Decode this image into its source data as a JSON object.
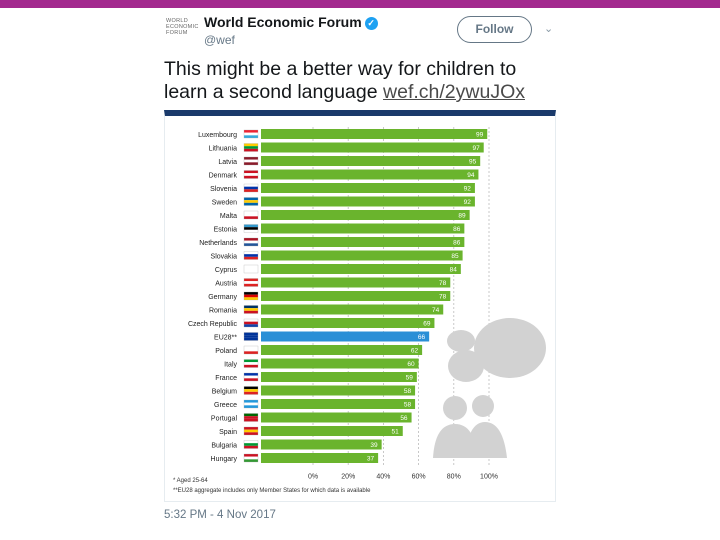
{
  "tweet": {
    "author": "World Economic Forum",
    "verified_mark": "✓",
    "handle": "@wef",
    "follow_label": "Follow",
    "menu_icon": "chevron-down-icon",
    "text": "This might be a better way for children to learn a second language ",
    "link_text": "wef.ch/2ywuJOx",
    "timestamp": "5:32 PM - 4 Nov 2017",
    "logo_lines": [
      "WORLD",
      "ECONOMIC",
      "FORUM"
    ]
  },
  "colors": {
    "top_bar": "#a3298e",
    "bar_default": "#6ab42d",
    "bar_highlight": "#2a8fd6",
    "card_border_top": "#1a3a6b",
    "follow_text": "#657786"
  },
  "chart_data": {
    "type": "bar",
    "orientation": "horizontal",
    "categories": [
      "Luxembourg",
      "Lithuania",
      "Latvia",
      "Denmark",
      "Slovenia",
      "Sweden",
      "Malta",
      "Estonia",
      "Netherlands",
      "Slovakia",
      "Cyprus",
      "Austria",
      "Germany",
      "Romania",
      "Czech Republic",
      "EU28**",
      "Poland",
      "Italy",
      "France",
      "Belgium",
      "Greece",
      "Portugal",
      "Spain",
      "Bulgaria",
      "Hungary"
    ],
    "values": [
      99,
      97,
      95,
      94,
      92,
      92,
      89,
      86,
      86,
      85,
      84,
      78,
      78,
      74,
      69,
      66,
      62,
      60,
      59,
      58,
      58,
      56,
      51,
      39,
      37
    ],
    "highlight": "EU28**",
    "xticks": [
      "0%",
      "20%",
      "40%",
      "60%",
      "80%",
      "100%"
    ],
    "xlim": [
      0,
      100
    ],
    "grid": true,
    "footnotes": [
      "* Aged 25-64",
      "**EU28 aggregate includes only Member States for which data is available"
    ]
  }
}
